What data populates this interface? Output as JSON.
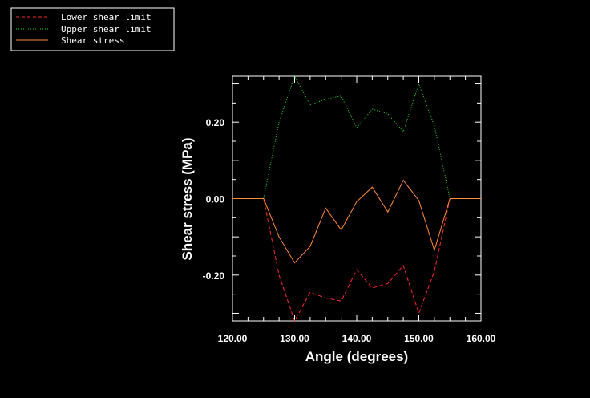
{
  "chart_data": {
    "type": "line",
    "xlabel": "Angle (degrees)",
    "ylabel": "Shear stress (MPa)",
    "xlim": [
      120,
      160
    ],
    "ylim": [
      -0.32,
      0.32
    ],
    "x_ticks": [
      120,
      130,
      140,
      150,
      160
    ],
    "x_tick_labels": [
      "120.00",
      "130.00",
      "140.00",
      "150.00",
      "160.00"
    ],
    "y_ticks": [
      -0.2,
      0.0,
      0.2
    ],
    "y_tick_labels": [
      "-0.20",
      "0.00",
      "0.20"
    ],
    "legend_position": "top-left",
    "grid": false,
    "x": [
      120,
      125,
      127.5,
      130,
      132.5,
      135,
      137.5,
      140,
      142.5,
      145,
      147.5,
      150,
      152.5,
      155,
      160
    ],
    "series": [
      {
        "name": "Lower shear limit",
        "color": "#ff2a2a",
        "style": "dashed",
        "values": [
          0,
          0,
          -0.2,
          -0.32,
          -0.245,
          -0.26,
          -0.268,
          -0.186,
          -0.234,
          -0.222,
          -0.175,
          -0.3,
          -0.19,
          0,
          0
        ]
      },
      {
        "name": "Upper shear limit",
        "color": "#22dd22",
        "style": "dotted",
        "values": [
          0,
          0,
          0.2,
          0.32,
          0.245,
          0.26,
          0.268,
          0.186,
          0.234,
          0.222,
          0.175,
          0.3,
          0.19,
          0,
          0
        ]
      },
      {
        "name": "Shear stress",
        "color": "#ff8c3a",
        "style": "solid",
        "values": [
          0,
          0,
          -0.1,
          -0.168,
          -0.125,
          -0.025,
          -0.082,
          -0.008,
          0.03,
          -0.035,
          0.048,
          -0.005,
          -0.135,
          0,
          0
        ]
      }
    ]
  }
}
